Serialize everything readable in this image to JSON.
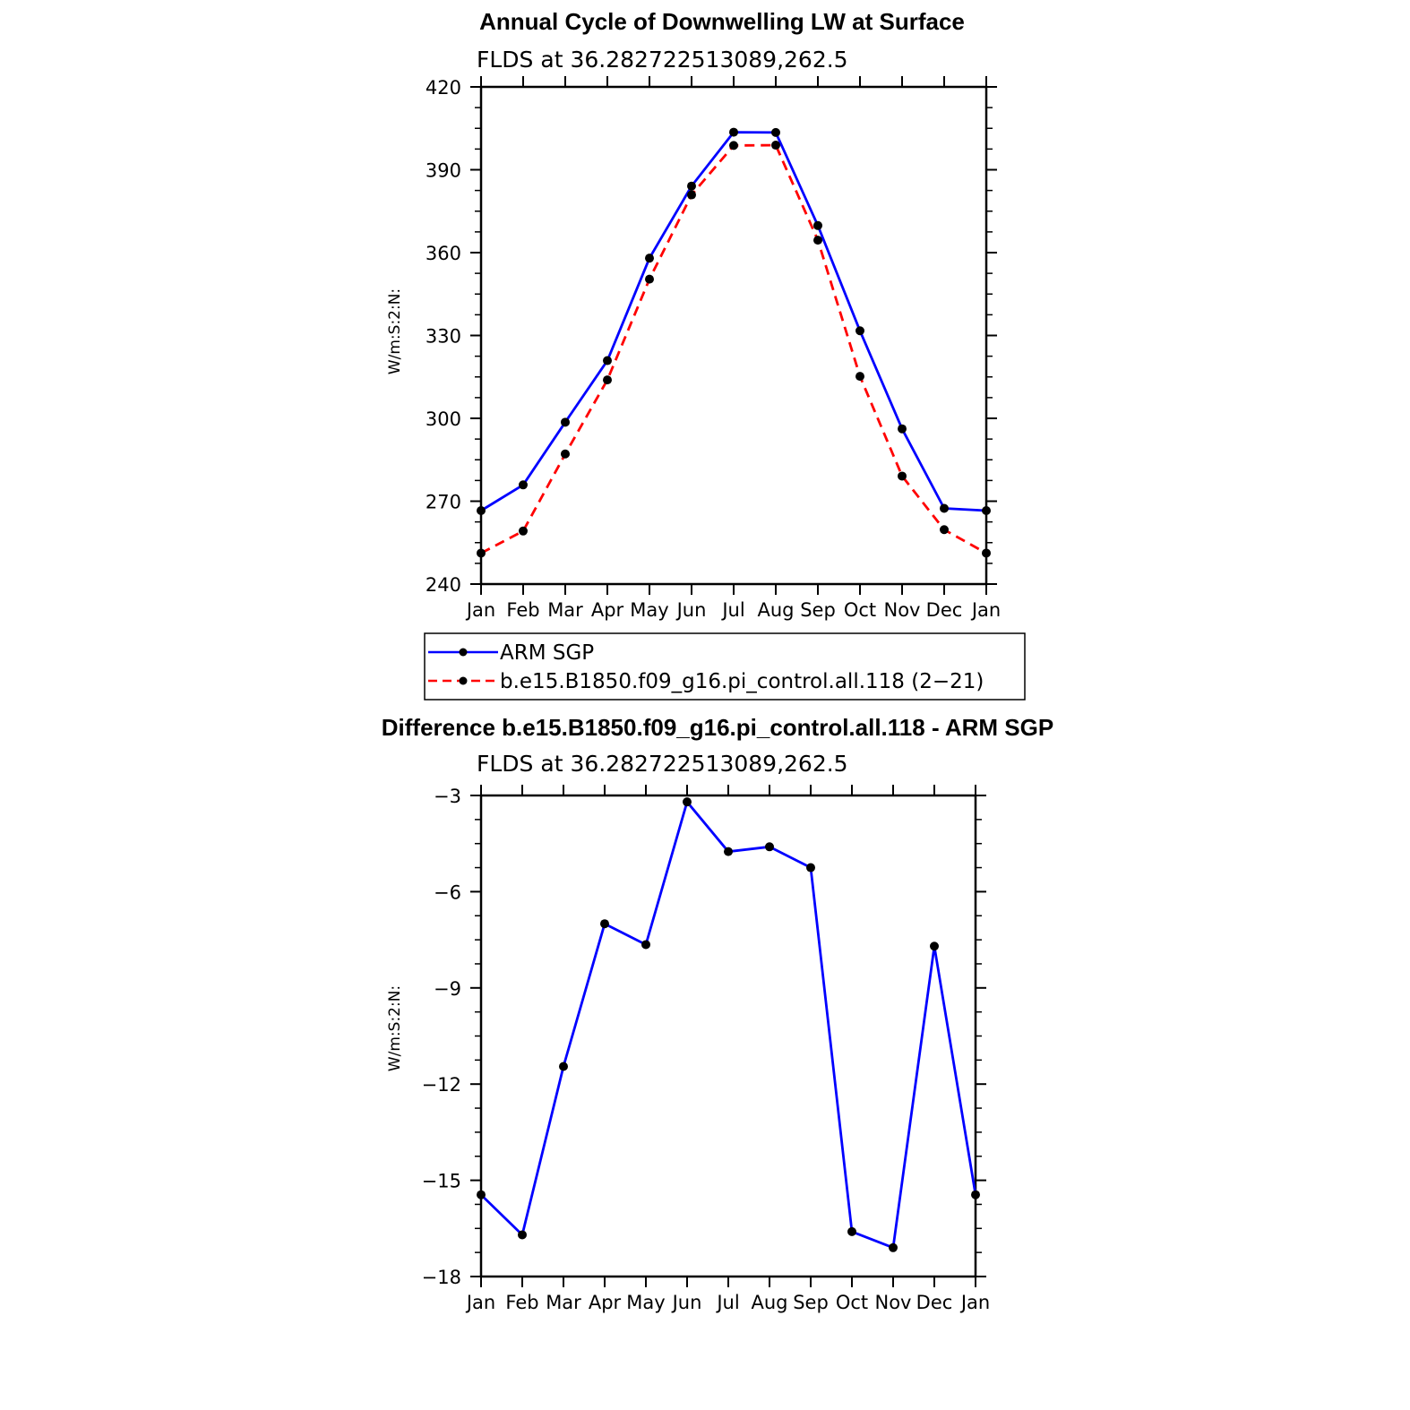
{
  "colors": {
    "series_blue": "#0000ff",
    "series_red": "#ff0000",
    "marker": "#000000",
    "axis": "#000000"
  },
  "chart_data": [
    {
      "type": "line",
      "title": "Annual Cycle of Downwelling LW at Surface",
      "subtitle": "FLDS at 36.282722513089,262.5",
      "ylabel": "W/m:S:2:N:",
      "ylim": [
        240,
        420
      ],
      "yticks": [
        "240",
        "270",
        "300",
        "330",
        "360",
        "390",
        "420"
      ],
      "categories": [
        "Jan",
        "Feb",
        "Mar",
        "Apr",
        "May",
        "Jun",
        "Jul",
        "Aug",
        "Sep",
        "Oct",
        "Nov",
        "Dec",
        "Jan"
      ],
      "series": [
        {
          "name": "ARM SGP",
          "style": "solid",
          "color": "#0000ff",
          "values": [
            266.6,
            275.9,
            298.6,
            320.9,
            358.0,
            384.1,
            403.6,
            403.5,
            369.8,
            331.7,
            296.2,
            267.4,
            266.6
          ]
        },
        {
          "name": "b.e15.B1850.f09_g16.pi_control.all.118 (2−21)",
          "style": "dashed",
          "color": "#ff0000",
          "values": [
            251.2,
            259.2,
            287.1,
            313.9,
            350.4,
            380.9,
            398.8,
            398.9,
            364.5,
            315.2,
            279.1,
            259.7,
            251.2
          ]
        }
      ],
      "legend": "below"
    },
    {
      "type": "line",
      "title": "Difference b.e15.B1850.f09_g16.pi_control.all.118 - ARM SGP",
      "subtitle": "FLDS at 36.282722513089,262.5",
      "ylabel": "W/m:S:2:N:",
      "ylim": [
        -18,
        -3
      ],
      "yticks": [
        "−18",
        "−15",
        "−12",
        "−9",
        "−6",
        "−3"
      ],
      "categories": [
        "Jan",
        "Feb",
        "Mar",
        "Apr",
        "May",
        "Jun",
        "Jul",
        "Aug",
        "Sep",
        "Oct",
        "Nov",
        "Dec",
        "Jan"
      ],
      "series": [
        {
          "style": "solid",
          "color": "#0000ff",
          "values": [
            -15.45,
            -16.7,
            -11.45,
            -7.0,
            -7.65,
            -3.2,
            -4.75,
            -4.6,
            -5.25,
            -16.6,
            -17.1,
            -7.7,
            -15.45
          ]
        }
      ]
    }
  ]
}
